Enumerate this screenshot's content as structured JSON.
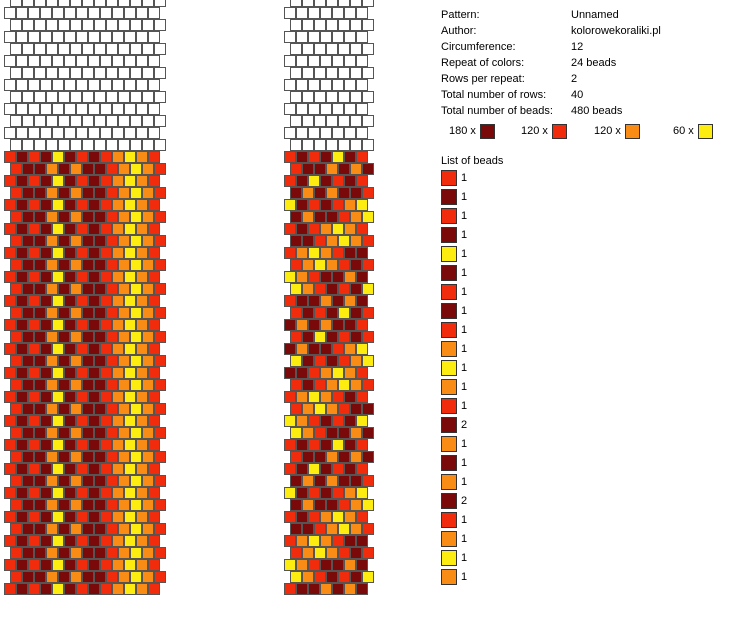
{
  "info": [
    {
      "label": "Pattern:",
      "value": "Unnamed"
    },
    {
      "label": "Author:",
      "value": "kolorowekoraliki.pl"
    },
    {
      "label": "Circumference:",
      "value": "12"
    },
    {
      "label": "Repeat of colors:",
      "value": "24 beads"
    },
    {
      "label": "Rows per repeat:",
      "value": "2"
    },
    {
      "label": "Total number of rows:",
      "value": "40"
    },
    {
      "label": "Total number of beads:",
      "value": "480 beads"
    }
  ],
  "colors": {
    "dark_red": "#7a0a0a",
    "red": "#f02c0c",
    "orange": "#f88c14",
    "yellow": "#fcec10",
    "empty": "#ffffff",
    "outline": "#555555"
  },
  "counts": [
    {
      "label": "180 x",
      "color": "#7a0a0a"
    },
    {
      "label": "120 x",
      "color": "#f02c0c"
    },
    {
      "label": "120 x",
      "color": "#f88c14"
    },
    {
      "label": "60 x",
      "color": "#fcec10"
    }
  ],
  "list_title": "List of beads",
  "list": [
    {
      "color": "#f02c0c",
      "count": "1"
    },
    {
      "color": "#7a0a0a",
      "count": "1"
    },
    {
      "color": "#f02c0c",
      "count": "1"
    },
    {
      "color": "#7a0a0a",
      "count": "1"
    },
    {
      "color": "#fcec10",
      "count": "1"
    },
    {
      "color": "#7a0a0a",
      "count": "1"
    },
    {
      "color": "#f02c0c",
      "count": "1"
    },
    {
      "color": "#7a0a0a",
      "count": "1"
    },
    {
      "color": "#f02c0c",
      "count": "1"
    },
    {
      "color": "#f88c14",
      "count": "1"
    },
    {
      "color": "#fcec10",
      "count": "1"
    },
    {
      "color": "#f88c14",
      "count": "1"
    },
    {
      "color": "#f02c0c",
      "count": "1"
    },
    {
      "color": "#7a0a0a",
      "count": "2"
    },
    {
      "color": "#f88c14",
      "count": "1"
    },
    {
      "color": "#7a0a0a",
      "count": "1"
    },
    {
      "color": "#f88c14",
      "count": "1"
    },
    {
      "color": "#7a0a0a",
      "count": "2"
    },
    {
      "color": "#f02c0c",
      "count": "1"
    },
    {
      "color": "#f88c14",
      "count": "1"
    },
    {
      "color": "#fcec10",
      "count": "1"
    },
    {
      "color": "#f88c14",
      "count": "1"
    }
  ]
}
